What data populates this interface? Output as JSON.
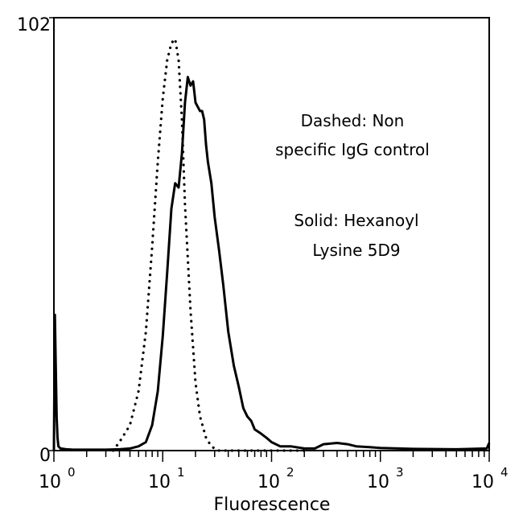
{
  "chart_data": {
    "type": "line",
    "xlabel": "Fluorescence",
    "ylabel": "",
    "x_scale": "log",
    "xlim": [
      1,
      10000
    ],
    "ylim": [
      0,
      102
    ],
    "y_tick_labels": [
      "0",
      "102"
    ],
    "x_tick_labels": [
      {
        "base": "10",
        "exp": "0"
      },
      {
        "base": "10",
        "exp": "1"
      },
      {
        "base": "10",
        "exp": "2"
      },
      {
        "base": "10",
        "exp": "3"
      },
      {
        "base": "10",
        "exp": "4"
      }
    ],
    "annotations": [
      "Dashed: Non",
      "specific IgG control",
      "Solid: Hexanoyl",
      "Lysine 5D9"
    ],
    "series": [
      {
        "style": "dotted",
        "x": [
          3.5,
          4,
          5,
          6,
          7,
          8,
          9,
          10,
          11,
          12,
          13,
          14,
          15,
          16,
          18,
          20,
          22,
          25,
          28,
          32,
          40,
          60,
          100,
          200
        ],
        "y": [
          0,
          2,
          6,
          14,
          28,
          48,
          68,
          83,
          92,
          96,
          97,
          92,
          78,
          58,
          33,
          16,
          8,
          3,
          1,
          0,
          0,
          0,
          0,
          0
        ]
      },
      {
        "style": "solid",
        "x": [
          1,
          1.02,
          1.04,
          1.06,
          1.08,
          1.1,
          1.15,
          1.3,
          1.5,
          2,
          3,
          4,
          5,
          6,
          7,
          8,
          9,
          10,
          11,
          12,
          13,
          14,
          15,
          16,
          17,
          18,
          19,
          20,
          21,
          22,
          23,
          24,
          25,
          26,
          28,
          30,
          33,
          36,
          40,
          45,
          50,
          55,
          60,
          65,
          70,
          80,
          90,
          100,
          120,
          150,
          200,
          250,
          300,
          400,
          500,
          600,
          800,
          1000,
          2000,
          5000,
          9500,
          10000
        ],
        "y": [
          0,
          32,
          20,
          8,
          3,
          1,
          0.5,
          0.3,
          0.2,
          0.2,
          0.2,
          0.3,
          0.5,
          1,
          2,
          6,
          14,
          27,
          42,
          57,
          63,
          62,
          70,
          82,
          88,
          86,
          87,
          82,
          81,
          80,
          80,
          78,
          72,
          68,
          63,
          55,
          47,
          39,
          28,
          20,
          15,
          10,
          8,
          7,
          5,
          4,
          3,
          2,
          1,
          1,
          0.5,
          0.5,
          1.5,
          1.8,
          1.5,
          1,
          0.8,
          0.6,
          0.4,
          0.3,
          0.5,
          1.8
        ]
      }
    ]
  }
}
